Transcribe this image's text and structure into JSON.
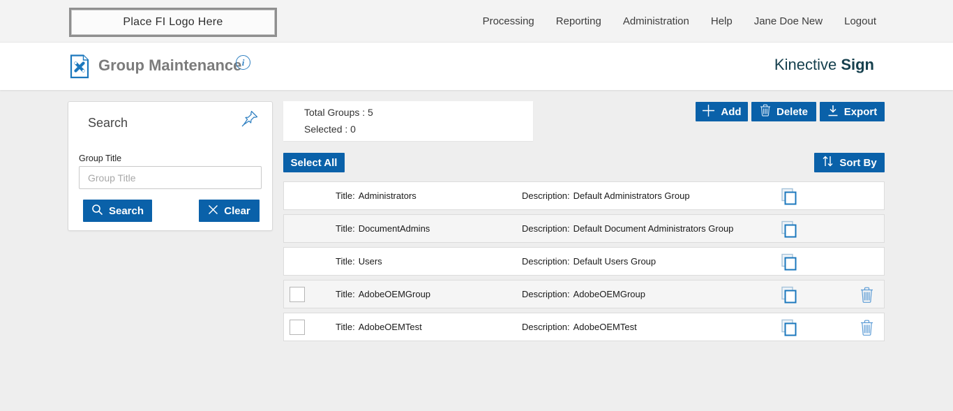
{
  "topbar": {
    "logo_text": "Place FI Logo Here",
    "nav": [
      "Processing",
      "Reporting",
      "Administration",
      "Help",
      "Jane Doe New",
      "Logout"
    ]
  },
  "header": {
    "title": "Group Maintenance",
    "info_glyph": "i",
    "brand_name": "Kinective",
    "brand_product": "Sign"
  },
  "search_panel": {
    "title": "Search",
    "field_label": "Group Title",
    "input_value": "",
    "placeholder": "Group Title",
    "search_button": "Search",
    "clear_button": "Clear"
  },
  "summary": {
    "total_label": "Total Groups :",
    "total_value": "5",
    "selected_label": "Selected :",
    "selected_value": "0"
  },
  "actions": {
    "add": "Add",
    "delete": "Delete",
    "export": "Export",
    "select_all": "Select All",
    "sort_by": "Sort By"
  },
  "groups": {
    "title_label": "Title:",
    "description_label": "Description:",
    "rows": [
      {
        "title": "Administrators",
        "description": "Default Administrators Group",
        "selectable": false,
        "deletable": false
      },
      {
        "title": "DocumentAdmins",
        "description": "Default Document Administrators Group",
        "selectable": false,
        "deletable": false
      },
      {
        "title": "Users",
        "description": "Default Users Group",
        "selectable": false,
        "deletable": false
      },
      {
        "title": "AdobeOEMGroup",
        "description": "AdobeOEMGroup",
        "selectable": true,
        "deletable": true
      },
      {
        "title": "AdobeOEMTest",
        "description": "AdobeOEMTest",
        "selectable": true,
        "deletable": true
      }
    ]
  },
  "icons": {
    "doc_tools": "document-tools-icon",
    "info": "info-icon",
    "pin": "pushpin-icon",
    "magnifier": "search-icon",
    "clear_x": "clear-x-icon",
    "plus": "plus-icon",
    "trash": "trash-icon",
    "download": "download-icon",
    "sort_arrows": "sort-arrows-icon",
    "copy": "copy-icon"
  },
  "colors": {
    "primary_blue": "#0a61a9",
    "icon_blue": "#1c78bd",
    "light_icon_blue": "#5b9bd5",
    "brand_teal": "#16404e",
    "topbar_bg": "#f3f3f3",
    "content_bg": "#eeeeee",
    "row_alt_bg": "#f5f5f5"
  }
}
